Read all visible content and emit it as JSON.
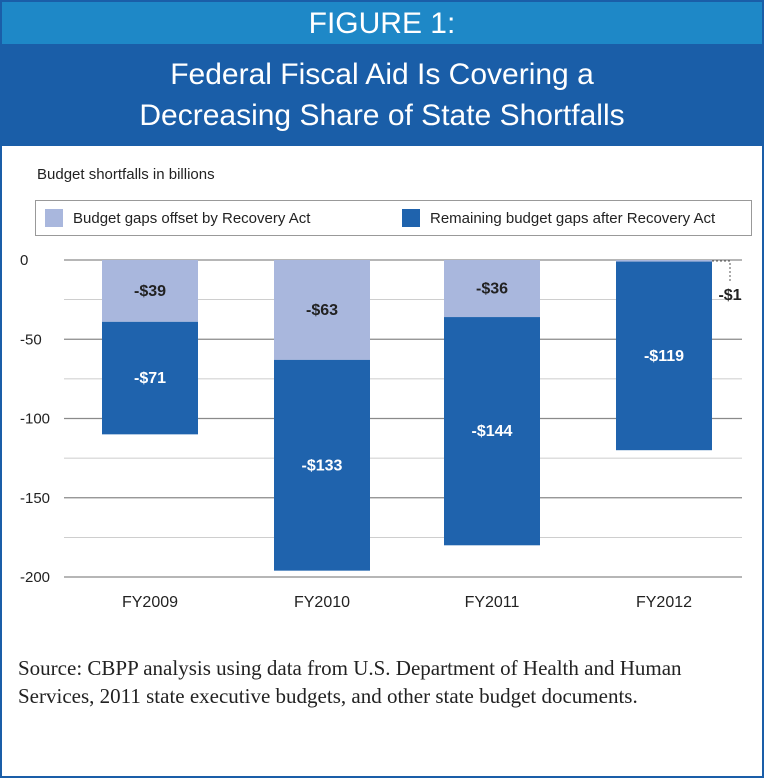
{
  "header": {
    "figure_label": "FIGURE 1:",
    "title_line1": "Federal Fiscal Aid Is Covering a",
    "title_line2": "Decreasing Share of State Shortfalls"
  },
  "source_note": "Source: CBPP analysis using data from U.S. Department of Health and Human Services, 2011 state executive budgets, and other state budget documents.",
  "colors": {
    "offset": "#a9b7dd",
    "remaining": "#1f63ad",
    "header_light": "#1e88c7",
    "header_dark": "#1a5ea8"
  },
  "chart_data": {
    "type": "bar",
    "stacked": true,
    "title": "",
    "ylabel": "Budget shortfalls in billions",
    "xlabel": "",
    "categories": [
      "FY2009",
      "FY2010",
      "FY2011",
      "FY2012"
    ],
    "series": [
      {
        "name": "Budget gaps offset by Recovery Act",
        "values": [
          -39,
          -63,
          -36,
          -1
        ],
        "labels": [
          "-$39",
          "-$63",
          "-$36",
          "-$1"
        ]
      },
      {
        "name": "Remaining budget gaps after Recovery Act",
        "values": [
          -71,
          -133,
          -144,
          -119
        ],
        "labels": [
          "-$71",
          "-$133",
          "-$144",
          "-$119"
        ]
      }
    ],
    "yticks": [
      0,
      -50,
      -100,
      -150,
      -200
    ],
    "ytick_labels": [
      "0",
      "-50",
      "-100",
      "-150",
      "-200"
    ],
    "ylim": [
      -200,
      0
    ],
    "grid": true,
    "legend_position": "top"
  }
}
